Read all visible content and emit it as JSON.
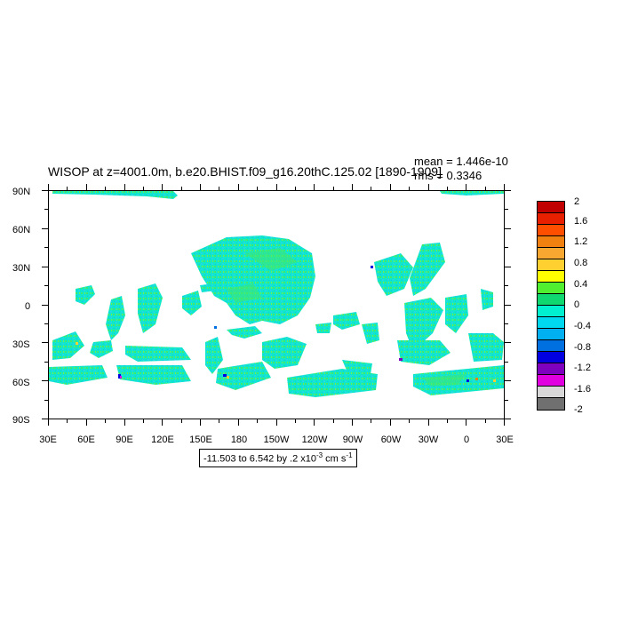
{
  "title": "WISOP at z=4001.0m, b.e20.BHIST.f09_g16.20thC.125.02 [1890-1909]",
  "stats": {
    "mean": "mean = 1.446e-10",
    "rms": "rms = 0.3346"
  },
  "lat_labels": [
    "90N",
    "60N",
    "30N",
    "0",
    "30S",
    "60S",
    "90S"
  ],
  "lon_labels": [
    "30E",
    "60E",
    "90E",
    "120E",
    "150E",
    "180",
    "150W",
    "120W",
    "90W",
    "60W",
    "30W",
    "0",
    "30E"
  ],
  "range": {
    "text": "-11.503 to 6.542 by .2 x10",
    "exp": "-3",
    "units": " cm s",
    "units_exp": "-1"
  },
  "colorbar": {
    "labels": [
      "2",
      "1.6",
      "1.2",
      "0.8",
      "0.4",
      "0",
      "-0.4",
      "-0.8",
      "-1.2",
      "-1.6",
      "-2"
    ],
    "colors": [
      "#c00000",
      "#e82000",
      "#ff4e00",
      "#f08010",
      "#f8a830",
      "#ffd030",
      "#ffff00",
      "#50f030",
      "#10d870",
      "#00f0d0",
      "#00d8f0",
      "#00b0f0",
      "#0070e0",
      "#0000e0",
      "#8000c0",
      "#e000e0",
      "#d8d8d8",
      "#707070"
    ]
  },
  "chart_data": {
    "type": "heatmap",
    "title": "WISOP at z=4001.0m, b.e20.BHIST.f09_g16.20thC.125.02 [1890-1909]",
    "x_axis": {
      "labels": [
        "30E",
        "60E",
        "90E",
        "120E",
        "150E",
        "180",
        "150W",
        "120W",
        "90W",
        "60W",
        "30W",
        "0",
        "30E"
      ],
      "range": [
        30,
        390
      ]
    },
    "y_axis": {
      "labels": [
        "90N",
        "60N",
        "30N",
        "0",
        "30S",
        "60S",
        "90S"
      ],
      "range": [
        -90,
        90
      ]
    },
    "mean": "1.446e-10",
    "rms": "0.3346",
    "value_range": [
      -11.503,
      6.542
    ],
    "contour_interval": 0.2,
    "scale": "x10^-3 cm s^-1",
    "colorbar_levels": [
      2,
      1.6,
      1.2,
      0.8,
      0.4,
      0,
      -0.4,
      -0.8,
      -1.2,
      -1.6,
      -2
    ]
  }
}
